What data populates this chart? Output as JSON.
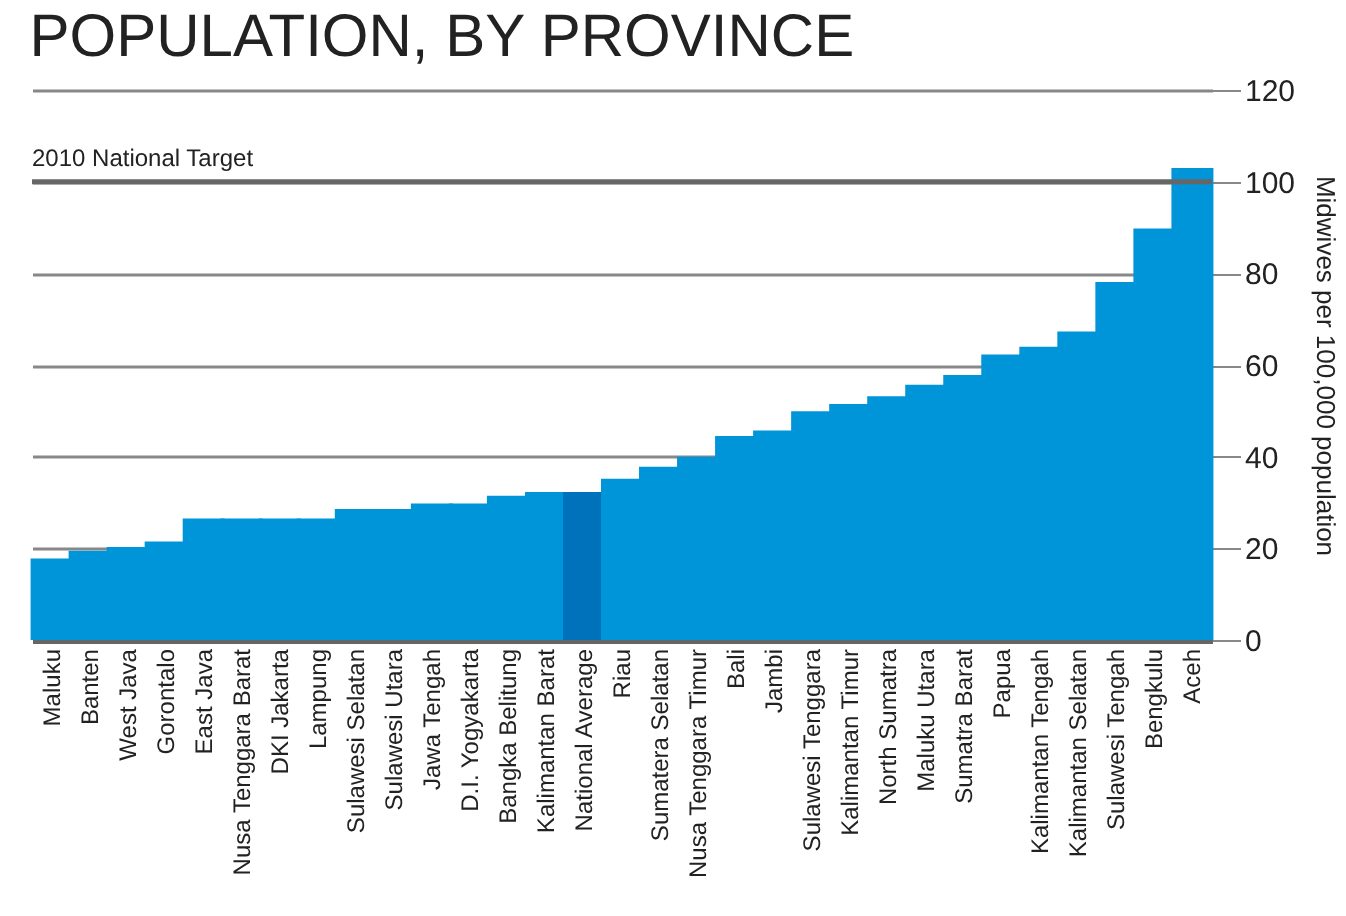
{
  "chart_data": {
    "type": "bar",
    "title": "POPULATION, BY PROVINCE",
    "ylabel": "Midwives per 100,000 population",
    "categories": [
      "Maluku",
      "Banten",
      "West Java",
      "Gorontalo",
      "East Java",
      "Nusa Tenggara Barat",
      "DKI Jakarta",
      "Lampung",
      "Sulawesi Selatan",
      "Sulawesi Utara",
      "Jawa Tengah",
      "D.I. Yogyakarta",
      "Bangka Belitung",
      "Kalimantan Barat",
      "National Average",
      "Riau",
      "Sumatera Selatan",
      "Nusa Tenggara Timur",
      "Bali",
      "Jambi",
      "Sulawesi Tenggara",
      "Kalimantan Timur",
      "North Sumatra",
      "Maluku Utara",
      "Sumatra Barat",
      "Papua",
      "Kalimantan Tengah",
      "Kalimantan Selatan",
      "Sulawesi Tengah",
      "Bengkulu",
      "Aceh"
    ],
    "values": [
      17.8,
      19.5,
      20.3,
      21.5,
      26.5,
      26.5,
      26.5,
      26.5,
      28.6,
      28.6,
      29.8,
      29.8,
      31.5,
      32.3,
      32.3,
      35.2,
      37.8,
      40.0,
      44.5,
      45.7,
      49.9,
      51.5,
      53.2,
      55.7,
      57.8,
      62.3,
      64.0,
      67.3,
      78.1,
      89.8,
      103.0
    ],
    "colors": [
      "#0094d9",
      "#0094d9",
      "#0094d9",
      "#0094d9",
      "#0094d9",
      "#0094d9",
      "#0094d9",
      "#0094d9",
      "#0094d9",
      "#0094d9",
      "#0094d9",
      "#0094d9",
      "#0094d9",
      "#0094d9",
      "#0072bb",
      "#0094d9",
      "#0094d9",
      "#0094d9",
      "#0094d9",
      "#0094d9",
      "#0094d9",
      "#0094d9",
      "#0094d9",
      "#0094d9",
      "#0094d9",
      "#0094d9",
      "#0094d9",
      "#0094d9",
      "#0094d9",
      "#0094d9",
      "#0094d9"
    ],
    "ylim": [
      0,
      120
    ],
    "yticks": [
      0,
      20,
      40,
      60,
      80,
      100,
      120
    ],
    "grid": "y",
    "ref_lines": [
      {
        "axis": "y",
        "value": 100,
        "label": "2010 National Target",
        "color": "#666666"
      }
    ]
  }
}
